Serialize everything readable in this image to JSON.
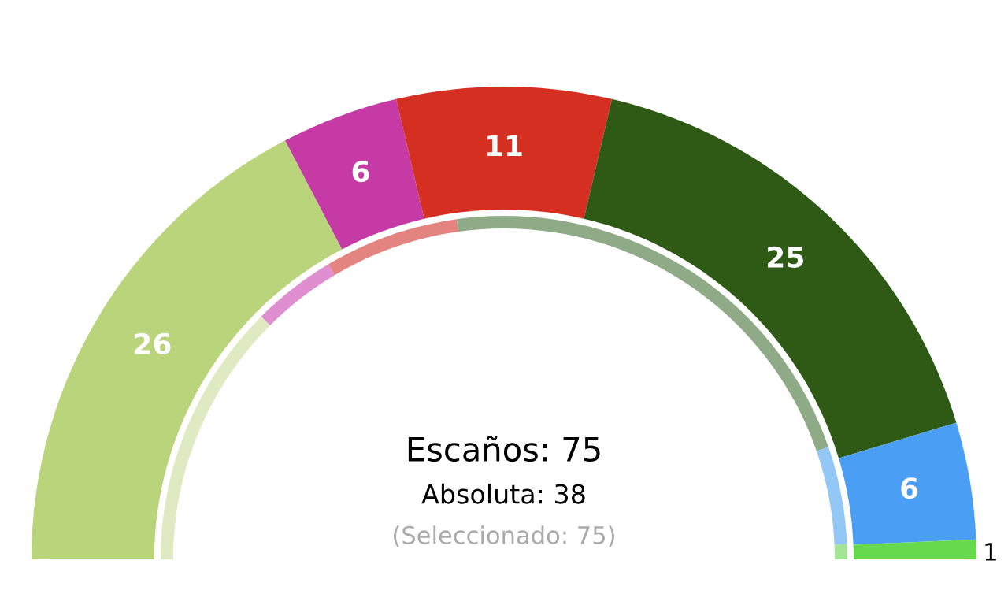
{
  "chart_data": {
    "type": "donut",
    "categories": [
      null,
      null,
      null,
      null,
      null,
      null
    ],
    "series": [
      {
        "values": [
          26,
          6,
          11,
          25,
          6,
          1
        ],
        "value_labels": [
          "26",
          "6",
          "11",
          "25",
          "6",
          "1"
        ],
        "colors": [
          "#b9d47a",
          "#c63aa6",
          "#d52f21",
          "#2e5a16",
          "#4a9ff5",
          "#66d94c"
        ]
      },
      {
        "values": [
          25.0,
          7.9,
          12.7,
          43.8,
          9.2,
          1.4
        ],
        "colors": [
          "#dfeac2",
          "#df8fd0",
          "#e38480",
          "#8faa86",
          "#93c8f6",
          "#a2e596"
        ]
      }
    ],
    "annotations": [
      "Escaños: 75",
      "Absoluta: 38",
      "(Seleccionado: 75)"
    ]
  }
}
